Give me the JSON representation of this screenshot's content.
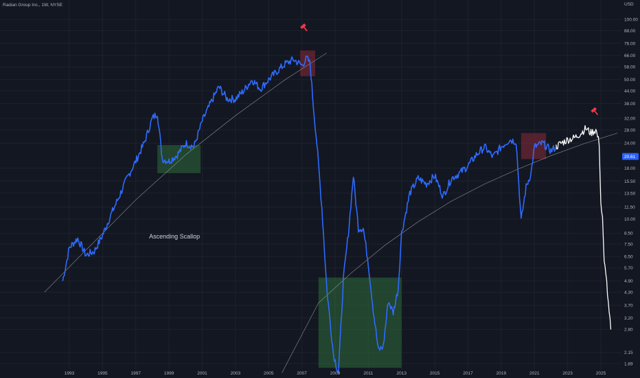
{
  "chart_data": {
    "type": "line",
    "title": "Radian Group Inc., 1W, NYSE",
    "currency": "USD",
    "y_scale": "log",
    "y_ticks": [
      1.89,
      2.15,
      2.8,
      3.2,
      3.7,
      4.3,
      4.9,
      5.7,
      6.5,
      7.5,
      8.5,
      10.0,
      11.5,
      13.5,
      15.5,
      18.0,
      24.0,
      28.0,
      32.0,
      38.0,
      44.0,
      50.0,
      58.0,
      66.0,
      76.0,
      88.0,
      100.0
    ],
    "y_tick_labels": [
      "1.89",
      "2.15",
      "2.80",
      "3.20",
      "3.70",
      "4.30",
      "4.90",
      "5.70",
      "6.50",
      "7.50",
      "8.50",
      "10.00",
      "11.50",
      "13.50",
      "15.50",
      "18.00",
      "24.00",
      "28.00",
      "32.00",
      "38.00",
      "44.00",
      "50.00",
      "58.00",
      "66.00",
      "76.00",
      "88.00",
      "100.00"
    ],
    "x_ticks": [
      1993,
      1995,
      1997,
      1999,
      2001,
      2003,
      2005,
      2007,
      2009,
      2011,
      2013,
      2015,
      2017,
      2019,
      2021,
      2023,
      2025
    ],
    "last_price": "20.61",
    "series": [
      {
        "color": "#2f6bff",
        "x": [
          1992.6,
          1993.0,
          1993.5,
          1994.0,
          1994.5,
          1995.0,
          1995.5,
          1996.0,
          1996.5,
          1997.0,
          1997.5,
          1998.0,
          1998.3,
          1998.6,
          1999.0,
          1999.5,
          2000.0,
          2000.5,
          2001.0,
          2001.5,
          2002.0,
          2002.5,
          2003.0,
          2003.5,
          2004.0,
          2004.5,
          2005.0,
          2005.5,
          2006.0,
          2006.5,
          2007.0,
          2007.3,
          2007.5,
          2007.7,
          2007.9,
          2008.2,
          2008.5,
          2008.9,
          2009.2,
          2009.5,
          2009.8,
          2010.1,
          2010.4,
          2010.7,
          2011.0,
          2011.3,
          2011.6,
          2011.9,
          2012.2,
          2012.5,
          2012.8,
          2013.0,
          2013.5,
          2014.0,
          2014.5,
          2015.0,
          2015.5,
          2016.0,
          2016.5,
          2017.0,
          2017.5,
          2018.0,
          2018.5,
          2019.0,
          2019.5,
          2019.9,
          2020.2,
          2020.5,
          2020.8,
          2021.0,
          2021.5,
          2022.0,
          2022.3
        ],
        "values": [
          4.9,
          7.2,
          8.0,
          6.6,
          6.9,
          8.3,
          10.5,
          13.0,
          16.2,
          19.5,
          24.0,
          32.0,
          34.0,
          20.0,
          19.5,
          21.0,
          24.0,
          23.0,
          31.0,
          38.0,
          46.0,
          40.0,
          40.0,
          44.0,
          50.0,
          45.0,
          50.0,
          55.0,
          60.0,
          63.0,
          59.0,
          64.0,
          60.0,
          36.0,
          24.0,
          11.5,
          4.5,
          2.1,
          1.7,
          5.0,
          8.5,
          16.5,
          9.0,
          9.0,
          6.0,
          3.5,
          2.2,
          2.3,
          3.9,
          3.4,
          4.5,
          8.5,
          13.5,
          16.0,
          15.0,
          16.5,
          13.0,
          16.0,
          17.0,
          18.5,
          21.0,
          23.0,
          20.5,
          23.0,
          25.0,
          24.5,
          9.8,
          14.5,
          17.0,
          23.0,
          24.0,
          22.0,
          23.0
        ]
      },
      {
        "color": "#ffffff",
        "x": [
          2022.3,
          2022.6,
          2023.0,
          2023.4,
          2023.8,
          2024.1,
          2024.4,
          2024.7,
          2024.9,
          2025.0,
          2025.1,
          2025.2,
          2025.3,
          2025.45,
          2025.6
        ],
        "values": [
          23.0,
          24.0,
          25.0,
          25.5,
          27.0,
          28.5,
          27.0,
          28.0,
          24.0,
          12.0,
          10.0,
          6.0,
          5.5,
          3.7,
          2.8
        ]
      }
    ],
    "curves": [
      {
        "x": [
          1991.5,
          1994.0,
          1997.0,
          2000.0,
          2003.0,
          2006.0,
          2008.5
        ],
        "values": [
          4.3,
          7.0,
          12.5,
          21.0,
          33.0,
          50.0,
          68.0
        ]
      },
      {
        "x": [
          2005.8,
          2008.0,
          2010.0,
          2012.0,
          2014.0,
          2016.0,
          2018.0,
          2020.0,
          2022.0,
          2024.0,
          2026.0
        ],
        "values": [
          1.7,
          3.8,
          5.4,
          7.4,
          9.7,
          12.3,
          15.0,
          17.8,
          20.8,
          23.9,
          27.0
        ]
      }
    ],
    "boxes": [
      {
        "kind": "green",
        "x0": 1998.3,
        "x1": 2000.9,
        "y0": 17.0,
        "y1": 23.5
      },
      {
        "kind": "red",
        "x0": 2006.9,
        "x1": 2007.8,
        "y0": 52.0,
        "y1": 70.0
      },
      {
        "kind": "green",
        "x0": 2008.0,
        "x1": 2013.0,
        "y0": 1.8,
        "y1": 5.1
      },
      {
        "kind": "red",
        "x0": 2020.2,
        "x1": 2021.7,
        "y0": 20.0,
        "y1": 27.0
      }
    ],
    "markers": [
      {
        "icon": "hammer-icon",
        "x": 2007.1,
        "value": 92.0
      },
      {
        "icon": "hammer-icon",
        "x": 2024.6,
        "value": 35.0
      }
    ],
    "annotations": [
      {
        "text": "Ascending Scallop",
        "x": 1997.8,
        "value": 8.0
      }
    ],
    "colors": {
      "background": "#131722",
      "axis_text": "#b2b5be",
      "green_box": "#2e6b3a",
      "red_box": "#8a2a3a",
      "marker": "#f23645",
      "price_tag": "#2962ff"
    }
  }
}
